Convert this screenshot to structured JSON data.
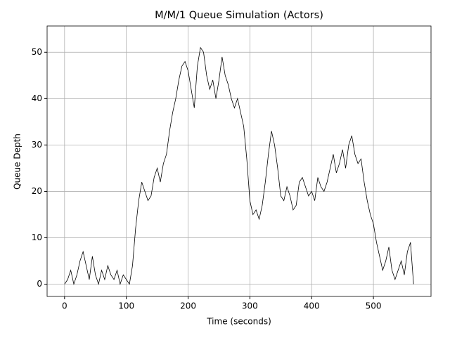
{
  "chart_data": {
    "type": "line",
    "title": "M/M/1 Queue Simulation (Actors)",
    "xlabel": "Time (seconds)",
    "ylabel": "Queue Depth",
    "x": [
      0,
      5,
      10,
      15,
      20,
      25,
      30,
      35,
      40,
      45,
      50,
      55,
      60,
      65,
      70,
      75,
      80,
      85,
      90,
      95,
      100,
      105,
      110,
      115,
      120,
      125,
      130,
      135,
      140,
      145,
      150,
      155,
      160,
      165,
      170,
      175,
      180,
      185,
      190,
      195,
      200,
      205,
      210,
      215,
      220,
      225,
      230,
      235,
      240,
      245,
      250,
      255,
      260,
      265,
      270,
      275,
      280,
      285,
      290,
      295,
      300,
      305,
      310,
      315,
      320,
      325,
      330,
      335,
      340,
      345,
      350,
      355,
      360,
      365,
      370,
      375,
      380,
      385,
      390,
      395,
      400,
      405,
      410,
      415,
      420,
      425,
      430,
      435,
      440,
      445,
      450,
      455,
      460,
      465,
      470,
      475,
      480,
      485,
      490,
      495,
      500,
      505,
      510,
      515,
      520,
      525,
      530,
      535,
      540,
      545,
      550,
      555,
      560,
      565
    ],
    "series": [
      {
        "name": "Queue Depth",
        "color": "#000000",
        "values": [
          0,
          1,
          3,
          0,
          2,
          5,
          7,
          4,
          1,
          6,
          2,
          0,
          3,
          1,
          4,
          2,
          1,
          3,
          0,
          2,
          1,
          0,
          4,
          12,
          18,
          22,
          20,
          18,
          19,
          23,
          25,
          22,
          26,
          28,
          33,
          37,
          40,
          44,
          47,
          48,
          46,
          42,
          38,
          47,
          51,
          50,
          45,
          42,
          44,
          40,
          44,
          49,
          45,
          43,
          40,
          38,
          40,
          37,
          34,
          27,
          18,
          15,
          16,
          14,
          17,
          22,
          28,
          33,
          30,
          25,
          19,
          18,
          21,
          19,
          16,
          17,
          22,
          23,
          21,
          19,
          20,
          18,
          23,
          21,
          20,
          22,
          25,
          28,
          24,
          26,
          29,
          25,
          30,
          32,
          28,
          26,
          27,
          22,
          18,
          15,
          13,
          9,
          6,
          3,
          5,
          8,
          3,
          1,
          3,
          5,
          2,
          7,
          9,
          0
        ]
      }
    ],
    "xlim": [
      -28.25,
      593.25
    ],
    "ylim": [
      -2.65,
      55.65
    ],
    "xticks": [
      0,
      100,
      200,
      300,
      400,
      500
    ],
    "yticks": [
      0,
      10,
      20,
      30,
      40,
      50
    ],
    "grid": true
  }
}
